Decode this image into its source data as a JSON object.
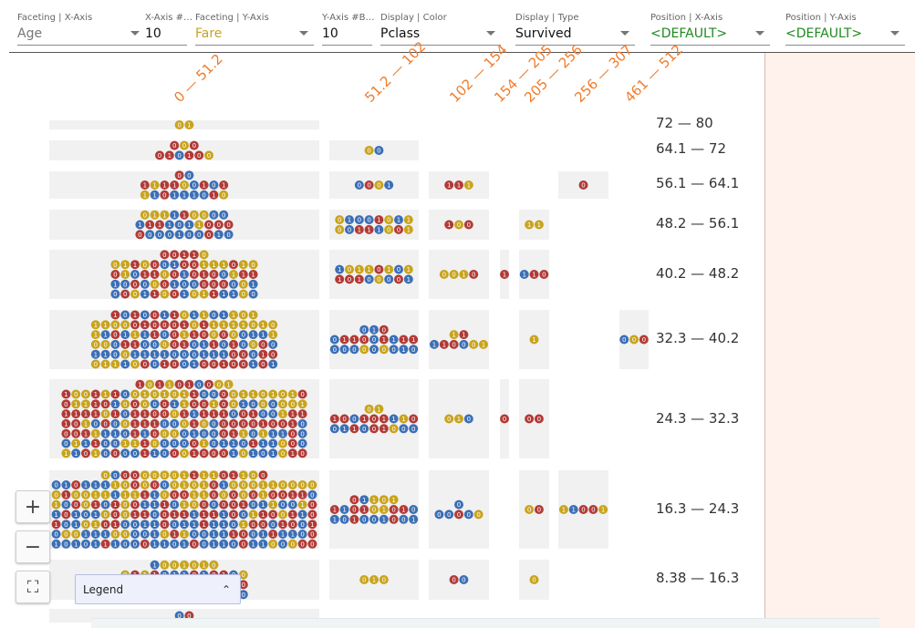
{
  "toolbar": {
    "fields": [
      {
        "label": "Faceting | X-Axis",
        "value": "Age",
        "tone": "muted",
        "dropdown": true
      },
      {
        "label": "X-Axis #…",
        "value": "10",
        "tone": "dark",
        "dropdown": false
      },
      {
        "label": "Faceting | Y-Axis",
        "value": "Fare",
        "tone": "fare",
        "dropdown": true
      },
      {
        "label": "Y-Axis #B…",
        "value": "10",
        "tone": "dark",
        "dropdown": false
      },
      {
        "label": "Display | Color",
        "value": "Pclass",
        "tone": "dark",
        "dropdown": true
      },
      {
        "label": "Display | Type",
        "value": "Survived",
        "tone": "dark",
        "dropdown": true
      },
      {
        "label": "Position | X-Axis",
        "value": "<DEFAULT>",
        "tone": "green",
        "dropdown": true
      },
      {
        "label": "Position | Y-Axis",
        "value": "<DEFAULT>",
        "tone": "green",
        "dropdown": true
      }
    ]
  },
  "x_bins": [
    "0 — 51.2",
    "51.2 — 102",
    "102 — 154",
    "154 — 205",
    "205 — 256",
    "256 — 307",
    "461 — 512"
  ],
  "y_bins": [
    "72 — 80",
    "64.1 — 72",
    "56.1 — 64.1",
    "48.2 — 56.1",
    "40.2 — 48.2",
    "32.3 — 40.2",
    "24.3 — 32.3",
    "16.3 — 24.3",
    "8.38 — 16.3"
  ],
  "controls": {
    "zoom_in_label": "+",
    "zoom_out_label": "−",
    "fit_label": "⛶",
    "legend_label": "Legend",
    "legend_toggle": "⌃"
  },
  "colors": {
    "class_1": "#3b6fb6",
    "class_2": "#c8a41c",
    "class_3": "#b23a36",
    "x_tick": "#f07b2b",
    "right_panel": "#fff1ec"
  },
  "dot_labels": {
    "survived": "1",
    "died": "0"
  }
}
